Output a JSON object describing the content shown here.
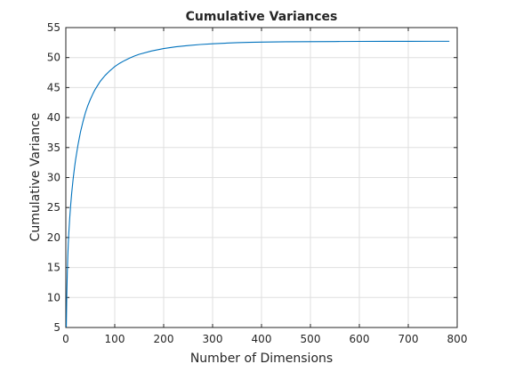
{
  "chart_data": {
    "type": "line",
    "title": "Cumulative Variances",
    "xlabel": "Number of Dimensions",
    "ylabel": "Cumulative Variance",
    "xlim": [
      0,
      800
    ],
    "ylim": [
      5,
      55
    ],
    "xticks": [
      0,
      100,
      200,
      300,
      400,
      500,
      600,
      700,
      800
    ],
    "yticks": [
      5,
      10,
      15,
      20,
      25,
      30,
      35,
      40,
      45,
      50,
      55
    ],
    "grid": true,
    "legend": "none",
    "series_color": "#0072BD",
    "series": [
      {
        "x": [
          1,
          2,
          3,
          4,
          5,
          6,
          8,
          10,
          12,
          15,
          18,
          20,
          25,
          30,
          35,
          40,
          45,
          50,
          55,
          60,
          70,
          80,
          90,
          100,
          110,
          120,
          130,
          140,
          150,
          175,
          200,
          225,
          250,
          275,
          300,
          325,
          350,
          375,
          400,
          450,
          500,
          550,
          600,
          650,
          700,
          750,
          784
        ],
        "y": [
          5.1,
          10.5,
          14.0,
          16.8,
          18.9,
          20.6,
          23.3,
          25.5,
          27.4,
          29.8,
          31.8,
          33.0,
          35.5,
          37.6,
          39.3,
          40.8,
          42.0,
          43.0,
          43.9,
          44.7,
          46.0,
          47.0,
          47.8,
          48.5,
          49.05,
          49.5,
          49.9,
          50.25,
          50.55,
          51.1,
          51.5,
          51.8,
          52.0,
          52.18,
          52.3,
          52.4,
          52.48,
          52.54,
          52.58,
          52.63,
          52.66,
          52.68,
          52.7,
          52.71,
          52.71,
          52.72,
          52.72
        ]
      }
    ]
  }
}
